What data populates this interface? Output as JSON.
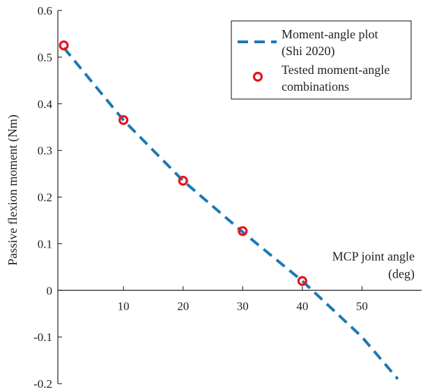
{
  "chart_data": {
    "type": "line",
    "xlabel_lines": [
      "MCP joint angle",
      "(deg)"
    ],
    "ylabel": "Passive flexion moment (Nm)",
    "xlim": [
      -1,
      60
    ],
    "ylim": [
      -0.2,
      0.6
    ],
    "x_ticks": [
      10,
      20,
      30,
      40,
      50
    ],
    "y_ticks": [
      -0.2,
      -0.1,
      0,
      0.1,
      0.2,
      0.3,
      0.4,
      0.5,
      0.6
    ],
    "y_tick_labels": [
      "-0.2",
      "-0.1",
      "0",
      "0.1",
      "0.2",
      "0.3",
      "0.4",
      "0.5",
      "0.6"
    ],
    "grid": false,
    "legend_position": "top-right",
    "series": [
      {
        "name_lines": [
          "Moment-angle plot",
          "(Shi 2020)"
        ],
        "style": "dashed-line",
        "color": "#1f77b4",
        "x": [
          0,
          10,
          20,
          30,
          40,
          50,
          56
        ],
        "y": [
          0.52,
          0.365,
          0.235,
          0.125,
          0.02,
          -0.1,
          -0.19
        ]
      },
      {
        "name_lines": [
          "Tested moment-angle",
          "combinations"
        ],
        "style": "circle-markers",
        "color": "#e8141b",
        "x": [
          0,
          10,
          20,
          30,
          40
        ],
        "y": [
          0.525,
          0.365,
          0.235,
          0.127,
          0.02
        ]
      }
    ]
  }
}
